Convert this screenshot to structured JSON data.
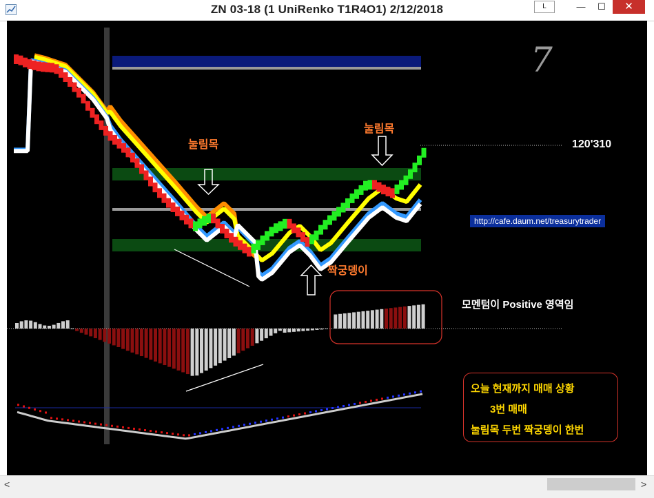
{
  "window": {
    "title": "ZN 03-18 (1 UniRenko T1R4O1)  2/12/2018",
    "buttons": {
      "layout": "L",
      "minimize": "—",
      "maximize": "☐",
      "close": "✕"
    }
  },
  "chart": {
    "label_pullback_1": "눌림목",
    "label_pullback_2": "눌림목",
    "label_double_bottom": "짝궁뎅이",
    "price_label": "120'310",
    "big_number": "7",
    "url": "http://cafe.daum.net/treasurytrader",
    "momentum_note": "모멘텀이 Positive 영역임",
    "summary": {
      "line1": "오늘 현재까지 매매 상황",
      "line2": "3번 매매",
      "line3": "눌림목 두번 짝궁뎅이 한번"
    }
  },
  "colors": {
    "background": "#000000",
    "up_brick": "#22ee22",
    "down_brick": "#ee2222",
    "ma_orange": "#ff8c00",
    "ma_yellow": "#ffff00",
    "ma_blue": "#3399ff",
    "ma_white": "#ffffff",
    "zone_green": "#0b4a12",
    "zone_navy": "#0a1a7a",
    "hist_red": "#8b0f0f",
    "hist_gray": "#cfcfcf",
    "annotation_text": "#ff7a2e",
    "summary_text": "#ffd700",
    "summary_border": "#d9342b"
  }
}
